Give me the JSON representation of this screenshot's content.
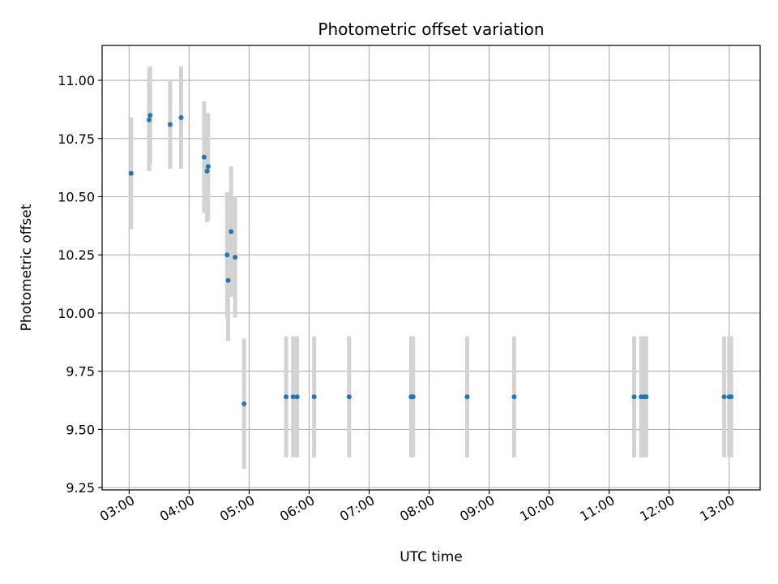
{
  "chart_data": {
    "type": "scatter",
    "title": "Photometric offset variation",
    "xlabel": "UTC time",
    "ylabel": "Photometric offset",
    "xlim": [
      "02:33",
      "13:31"
    ],
    "ylim": [
      9.24,
      11.15
    ],
    "x_ticks": [
      "03:00",
      "04:00",
      "05:00",
      "06:00",
      "07:00",
      "08:00",
      "09:00",
      "10:00",
      "11:00",
      "12:00",
      "13:00"
    ],
    "y_ticks": [
      "9.25",
      "9.50",
      "9.75",
      "10.00",
      "10.25",
      "10.50",
      "10.75",
      "11.00"
    ],
    "grid": true,
    "point_color": "#1f77b4",
    "errorbar_color": "#d3d3d3",
    "points": [
      {
        "x": "03:02",
        "y": 10.6,
        "err": 0.24
      },
      {
        "x": "03:20",
        "y": 10.83,
        "err": 0.22
      },
      {
        "x": "03:21",
        "y": 10.85,
        "err": 0.21
      },
      {
        "x": "03:41",
        "y": 10.81,
        "err": 0.19
      },
      {
        "x": "03:52",
        "y": 10.84,
        "err": 0.22
      },
      {
        "x": "04:15",
        "y": 10.67,
        "err": 0.24
      },
      {
        "x": "04:18",
        "y": 10.61,
        "err": 0.22
      },
      {
        "x": "04:19",
        "y": 10.63,
        "err": 0.23
      },
      {
        "x": "04:38",
        "y": 10.25,
        "err": 0.27
      },
      {
        "x": "04:39",
        "y": 10.14,
        "err": 0.26
      },
      {
        "x": "04:42",
        "y": 10.35,
        "err": 0.28
      },
      {
        "x": "04:46",
        "y": 10.24,
        "err": 0.26
      },
      {
        "x": "04:55",
        "y": 9.61,
        "err": 0.28
      },
      {
        "x": "05:37",
        "y": 9.64,
        "err": 0.26
      },
      {
        "x": "05:44",
        "y": 9.64,
        "err": 0.26
      },
      {
        "x": "05:48",
        "y": 9.64,
        "err": 0.26
      },
      {
        "x": "06:05",
        "y": 9.64,
        "err": 0.26
      },
      {
        "x": "06:40",
        "y": 9.64,
        "err": 0.26
      },
      {
        "x": "07:42",
        "y": 9.64,
        "err": 0.26
      },
      {
        "x": "07:44",
        "y": 9.64,
        "err": 0.26
      },
      {
        "x": "08:38",
        "y": 9.64,
        "err": 0.26
      },
      {
        "x": "09:25",
        "y": 9.64,
        "err": 0.26
      },
      {
        "x": "11:25",
        "y": 9.64,
        "err": 0.26
      },
      {
        "x": "11:32",
        "y": 9.64,
        "err": 0.26
      },
      {
        "x": "11:35",
        "y": 9.64,
        "err": 0.26
      },
      {
        "x": "11:37",
        "y": 9.64,
        "err": 0.26
      },
      {
        "x": "12:55",
        "y": 9.64,
        "err": 0.26
      },
      {
        "x": "13:00",
        "y": 9.64,
        "err": 0.26
      },
      {
        "x": "13:02",
        "y": 9.64,
        "err": 0.26
      }
    ]
  }
}
